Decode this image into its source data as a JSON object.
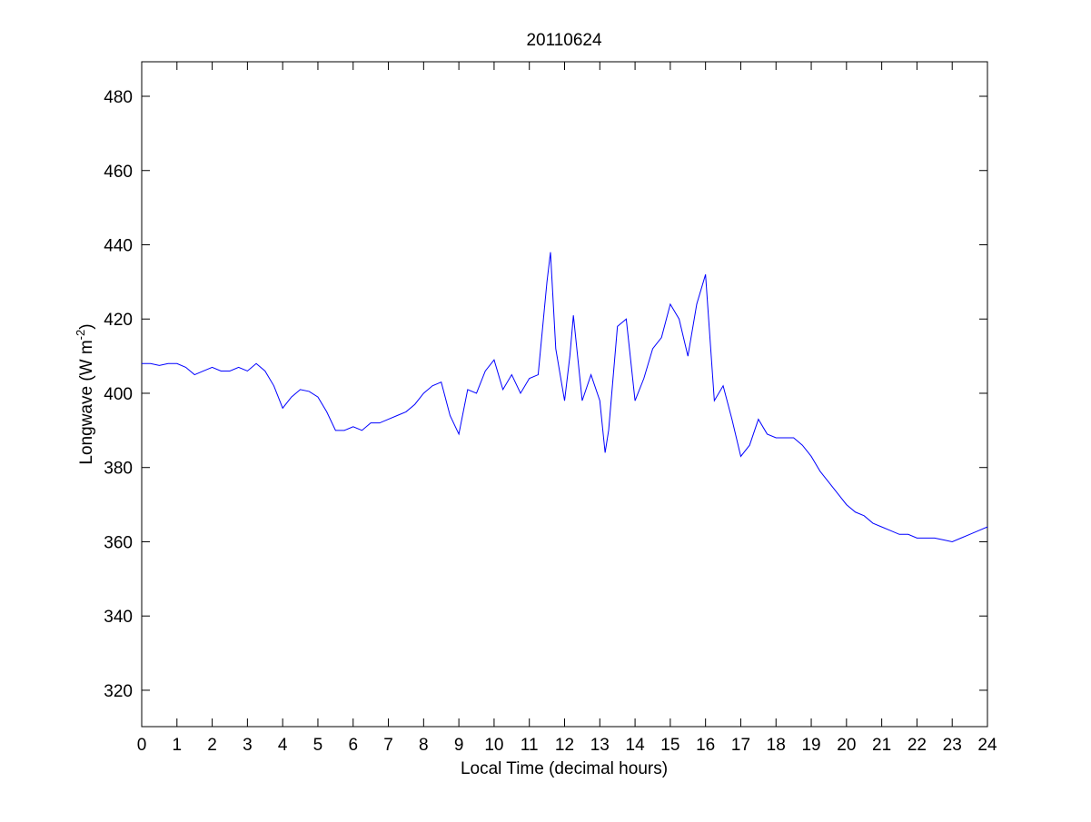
{
  "chart_data": {
    "type": "line",
    "title": "20110624",
    "x_label": "Local Time (decimal hours)",
    "y_label": {
      "text": "Longwave (W m",
      "superscript": "-2",
      "suffix": ")"
    },
    "xlim": [
      0,
      24
    ],
    "xticks": [
      0,
      1,
      2,
      3,
      4,
      5,
      6,
      7,
      8,
      9,
      10,
      11,
      12,
      13,
      14,
      15,
      16,
      17,
      18,
      19,
      20,
      21,
      22,
      23,
      24
    ],
    "ylim": [
      310.2,
      489.3
    ],
    "yticks": [
      320,
      340,
      360,
      380,
      400,
      420,
      440,
      460,
      480
    ],
    "grid": false,
    "series": [
      {
        "name": "Longwave",
        "color": "#0000ff",
        "x": [
          0,
          0.25,
          0.5,
          0.75,
          1,
          1.25,
          1.5,
          1.75,
          2,
          2.25,
          2.5,
          2.75,
          3,
          3.25,
          3.5,
          3.75,
          4,
          4.25,
          4.5,
          4.75,
          5,
          5.25,
          5.5,
          5.75,
          6,
          6.25,
          6.5,
          6.75,
          7,
          7.25,
          7.5,
          7.75,
          8,
          8.25,
          8.5,
          8.75,
          9,
          9.25,
          9.5,
          9.75,
          10,
          10.25,
          10.5,
          10.75,
          11,
          11.25,
          11.5,
          11.6,
          11.75,
          12,
          12.15,
          12.25,
          12.5,
          12.75,
          13,
          13.15,
          13.25,
          13.5,
          13.75,
          14,
          14.25,
          14.5,
          14.75,
          15,
          15.25,
          15.5,
          15.75,
          16,
          16.25,
          16.5,
          16.75,
          17,
          17.25,
          17.5,
          17.75,
          18,
          18.25,
          18.5,
          18.75,
          19,
          19.25,
          19.5,
          19.75,
          20,
          20.25,
          20.5,
          20.75,
          21,
          21.25,
          21.5,
          21.75,
          22,
          22.25,
          22.5,
          22.75,
          23,
          23.25,
          23.5,
          23.75,
          24
        ],
        "values": [
          408,
          408,
          407.5,
          408,
          408,
          407,
          405,
          406,
          407,
          406,
          406,
          407,
          406,
          408,
          406,
          402,
          396,
          399,
          401,
          400.5,
          399,
          395,
          390,
          390,
          391,
          390,
          392,
          392,
          393,
          394,
          395,
          397,
          400,
          402,
          403,
          394,
          389,
          401,
          400,
          406,
          409,
          401,
          405,
          400,
          404,
          405,
          430,
          438,
          412,
          398,
          410,
          421,
          398,
          405,
          398,
          384,
          390,
          418,
          420,
          398,
          404,
          412,
          415,
          424,
          420,
          410,
          424,
          432,
          398,
          402,
          393,
          383,
          386,
          393,
          389,
          388,
          388,
          388,
          386,
          383,
          379,
          376,
          373,
          370,
          368,
          367,
          365,
          364,
          363,
          362,
          362,
          361,
          361,
          361,
          360.5,
          360,
          361,
          362,
          363,
          364
        ]
      }
    ]
  }
}
